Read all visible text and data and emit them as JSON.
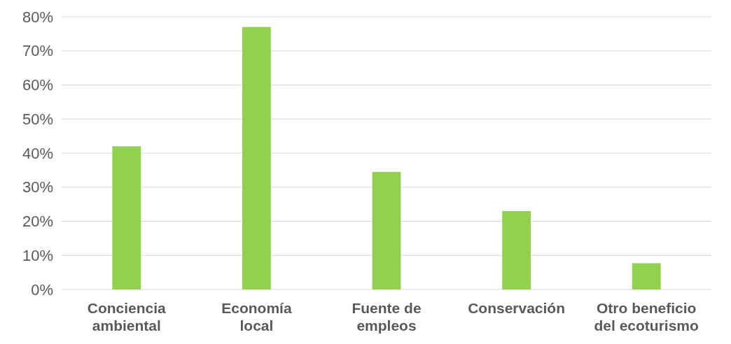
{
  "chart_data": {
    "type": "bar",
    "categories": [
      "Conciencia ambiental",
      "Economía local",
      "Fuente de empleos",
      "Conservación",
      "Otro beneficio del ecoturismo"
    ],
    "values": [
      42,
      77,
      34.5,
      23,
      7.7
    ],
    "color": "#92d050",
    "ylim": [
      0,
      80
    ],
    "yticks": [
      {
        "value": 0,
        "label": "0%"
      },
      {
        "value": 10,
        "label": "10%"
      },
      {
        "value": 20,
        "label": "20%"
      },
      {
        "value": 30,
        "label": "30%"
      },
      {
        "value": 40,
        "label": "40%"
      },
      {
        "value": 50,
        "label": "50%"
      },
      {
        "value": 60,
        "label": "60%"
      },
      {
        "value": 70,
        "label": "70%"
      },
      {
        "value": 80,
        "label": "80%"
      }
    ],
    "grid": "y"
  }
}
